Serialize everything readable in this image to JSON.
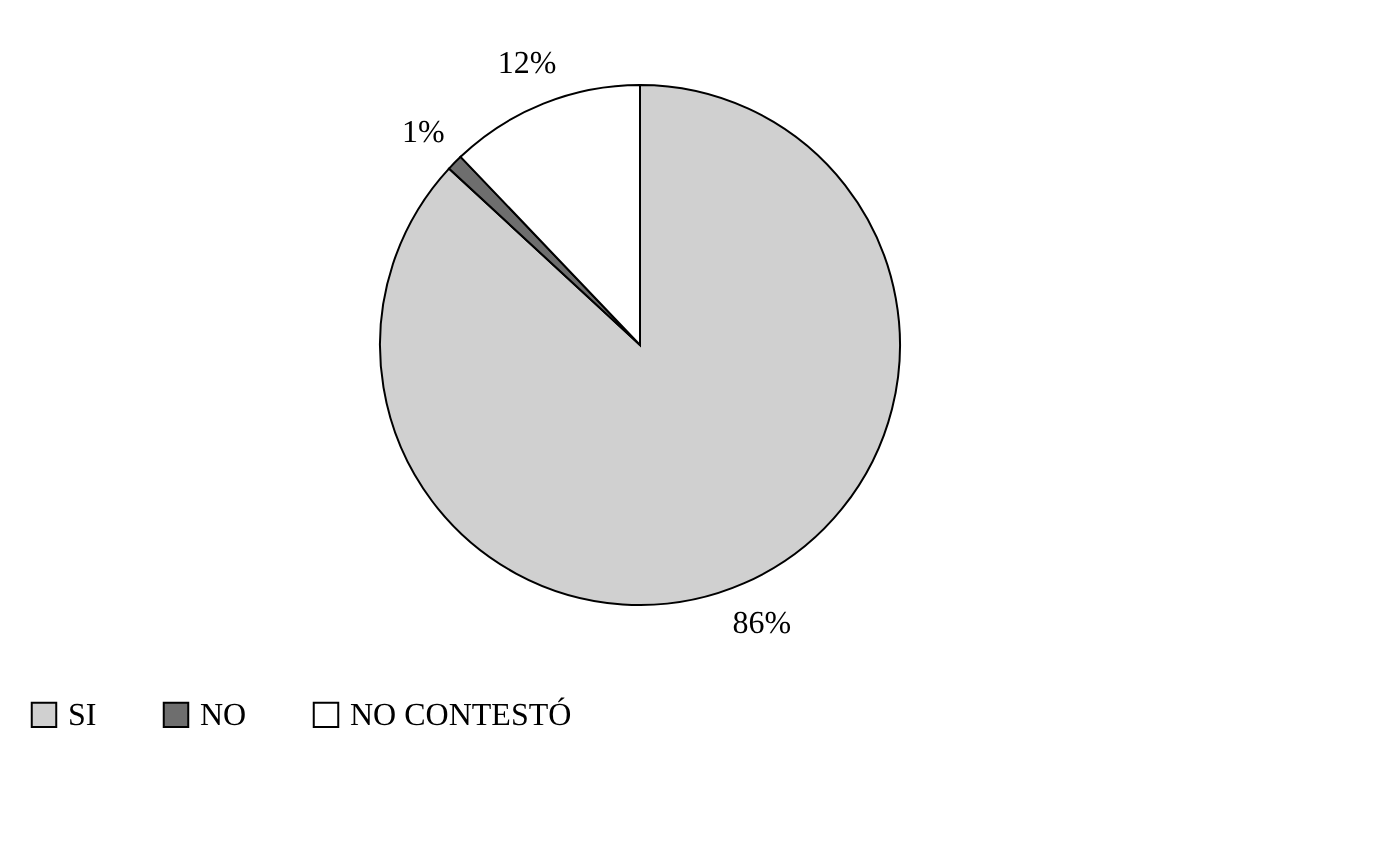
{
  "chart_data": {
    "type": "pie",
    "categories": [
      "SI",
      "NO",
      "NO CONTESTÓ"
    ],
    "values": [
      86,
      1,
      12
    ],
    "colors": [
      "#d0d0d0",
      "#6e6e6e",
      "#ffffff"
    ],
    "value_labels": [
      "86%",
      "1%",
      "12%"
    ],
    "legend": "bottom"
  }
}
